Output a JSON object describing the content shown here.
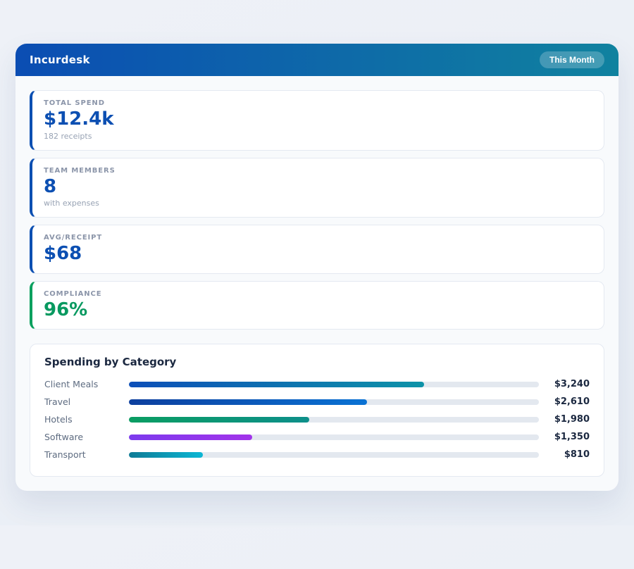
{
  "colors": {
    "header_gradient_from": "#0b4db3",
    "header_gradient_to": "#10829f",
    "stat_accent_blue": "#0c4fb2",
    "stat_accent_green": "#0aa05e",
    "track_gray": "#e3e8ef",
    "amount_text": "#1b2840"
  },
  "header": {
    "title": "Incurdesk",
    "badge": "This Month"
  },
  "stats": [
    {
      "label": "TOTAL SPEND",
      "value": "$12.4k",
      "sub": "182 receipts",
      "accent": "#0c4fb2",
      "value_color": "#0c4fb2"
    },
    {
      "label": "TEAM MEMBERS",
      "value": "8",
      "sub": "with expenses",
      "accent": "#0c4fb2",
      "value_color": "#0c4fb2"
    },
    {
      "label": "AVG/RECEIPT",
      "value": "$68",
      "sub": "",
      "accent": "#0c4fb2",
      "value_color": "#0c4fb2"
    },
    {
      "label": "COMPLIANCE",
      "value": "96%",
      "sub": "",
      "accent": "#0aa05e",
      "value_color": "#089960"
    }
  ],
  "chart": {
    "title": "Spending by Category"
  },
  "chart_data": {
    "type": "bar",
    "orientation": "horizontal",
    "title": "Spending by Category",
    "categories": [
      "Client Meals",
      "Travel",
      "Hotels",
      "Software",
      "Transport"
    ],
    "values": [
      3240,
      2610,
      1980,
      1350,
      810
    ],
    "value_labels": [
      "$3,240",
      "$2,610",
      "$1,980",
      "$1,350",
      "$810"
    ],
    "xlim": [
      0,
      4500
    ],
    "max_scale": 4500,
    "grid": false,
    "legend": false,
    "bar_gradients": [
      [
        "#0d4fb8",
        "#0e93a8"
      ],
      [
        "#0d3f9e",
        "#0a72d4"
      ],
      [
        "#0a9d62",
        "#0d8f8a"
      ],
      [
        "#7c3aed",
        "#a234ea"
      ],
      [
        "#0e7b96",
        "#0cb6d4"
      ]
    ]
  }
}
